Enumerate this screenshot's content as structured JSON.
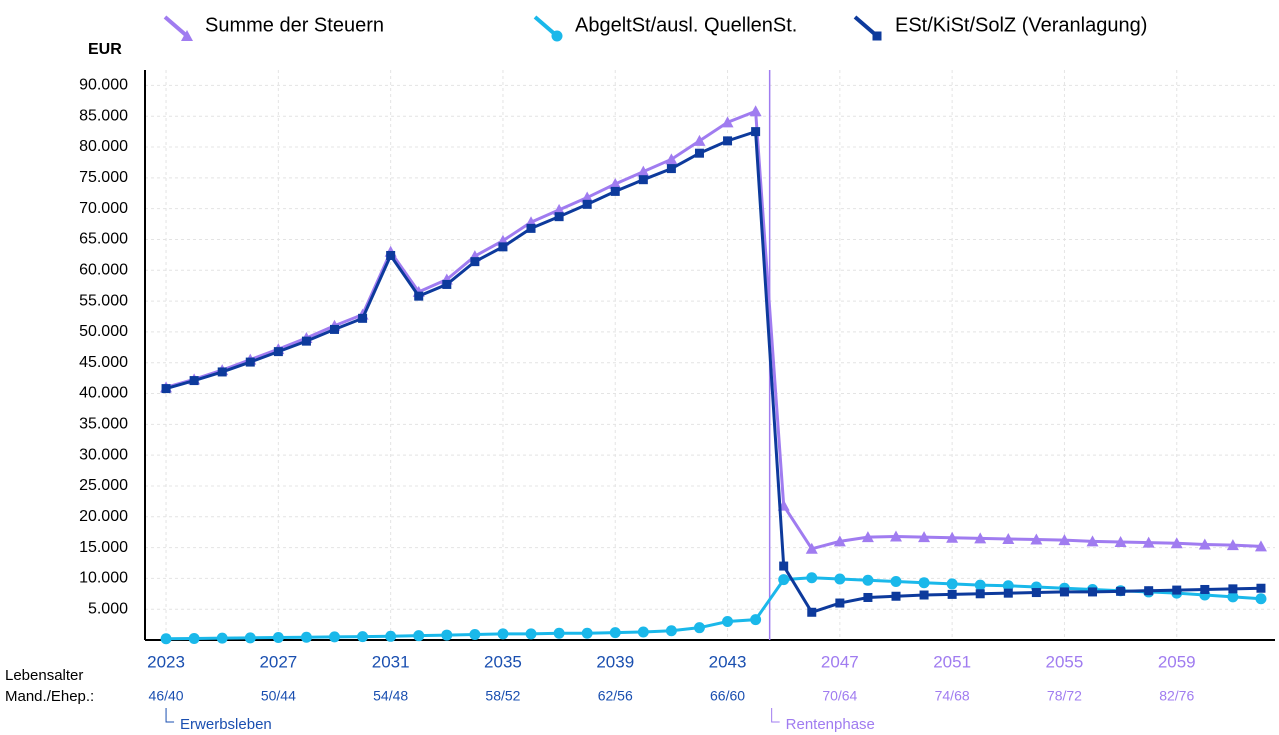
{
  "chart_data": {
    "type": "line",
    "y_axis_label": "EUR",
    "x": [
      2023,
      2024,
      2025,
      2026,
      2027,
      2028,
      2029,
      2030,
      2031,
      2032,
      2033,
      2034,
      2035,
      2036,
      2037,
      2038,
      2039,
      2040,
      2041,
      2042,
      2043,
      2044,
      2045,
      2046,
      2047,
      2048,
      2049,
      2050,
      2051,
      2052,
      2053,
      2054,
      2055,
      2056,
      2057,
      2058,
      2059,
      2060,
      2061,
      2062
    ],
    "series": [
      {
        "name": "Summe der Steuern",
        "color": "#a07cf0",
        "marker": "triangle",
        "values": [
          41000,
          42300,
          43800,
          45500,
          47200,
          49000,
          51000,
          52800,
          63000,
          56500,
          58500,
          62300,
          64800,
          67800,
          69800,
          71800,
          74000,
          76000,
          78000,
          81000,
          84000,
          85800,
          21800,
          14800,
          16000,
          16700,
          16800,
          16700,
          16600,
          16500,
          16400,
          16300,
          16200,
          16000,
          15900,
          15800,
          15700,
          15500,
          15400,
          15200
        ]
      },
      {
        "name": "AbgeltSt/ausl. QuellenSt.",
        "color": "#1ab8ea",
        "marker": "circle",
        "values": [
          200,
          250,
          300,
          350,
          400,
          450,
          500,
          550,
          600,
          700,
          800,
          900,
          1000,
          1000,
          1100,
          1100,
          1200,
          1300,
          1500,
          2000,
          3000,
          3300,
          9800,
          10100,
          9900,
          9700,
          9500,
          9300,
          9100,
          8900,
          8800,
          8600,
          8400,
          8200,
          8000,
          7800,
          7600,
          7300,
          7000,
          6700
        ]
      },
      {
        "name": "ESt/KiSt/SolZ (Veranlagung)",
        "color": "#0d3a9c",
        "marker": "square",
        "values": [
          40800,
          42100,
          43500,
          45100,
          46800,
          48500,
          50400,
          52200,
          62400,
          55800,
          57700,
          61400,
          63800,
          66800,
          68700,
          70700,
          72800,
          74700,
          76500,
          79000,
          81000,
          82500,
          12000,
          4500,
          6000,
          6900,
          7100,
          7300,
          7400,
          7500,
          7600,
          7700,
          7800,
          7800,
          7900,
          8000,
          8100,
          8200,
          8300,
          8400
        ]
      }
    ],
    "xlim": [
      2022.25,
      2062.5
    ],
    "xticks": [
      2023,
      2027,
      2031,
      2035,
      2039,
      2043,
      2047,
      2051,
      2055,
      2059
    ],
    "ylim": [
      0,
      92500
    ],
    "yticks": [
      {
        "value": 5000,
        "label": "5.000"
      },
      {
        "value": 10000,
        "label": "10.000"
      },
      {
        "value": 15000,
        "label": "15.000"
      },
      {
        "value": 20000,
        "label": "20.000"
      },
      {
        "value": 25000,
        "label": "25.000"
      },
      {
        "value": 30000,
        "label": "30.000"
      },
      {
        "value": 35000,
        "label": "35.000"
      },
      {
        "value": 40000,
        "label": "40.000"
      },
      {
        "value": 45000,
        "label": "45.000"
      },
      {
        "value": 50000,
        "label": "50.000"
      },
      {
        "value": 55000,
        "label": "55.000"
      },
      {
        "value": 60000,
        "label": "60.000"
      },
      {
        "value": 65000,
        "label": "65.000"
      },
      {
        "value": 70000,
        "label": "70.000"
      },
      {
        "value": 75000,
        "label": "75.000"
      },
      {
        "value": 80000,
        "label": "80.000"
      },
      {
        "value": 85000,
        "label": "85.000"
      },
      {
        "value": 90000,
        "label": "90.000"
      }
    ],
    "grid": true,
    "age_row_label": "Lebensalter",
    "age_row_sublabel": "Mand./Ehep.:",
    "age_labels": [
      "46/40",
      "50/44",
      "54/48",
      "58/52",
      "62/56",
      "66/60",
      "70/64",
      "74/68",
      "78/72",
      "82/76"
    ],
    "phase_split_x": 2044.5,
    "phase_before_color": "#1a4fb0",
    "phase_after_color": "#a07cf0",
    "phase_before_label": "Erwerbsleben",
    "phase_after_label": "Rentenphase"
  }
}
